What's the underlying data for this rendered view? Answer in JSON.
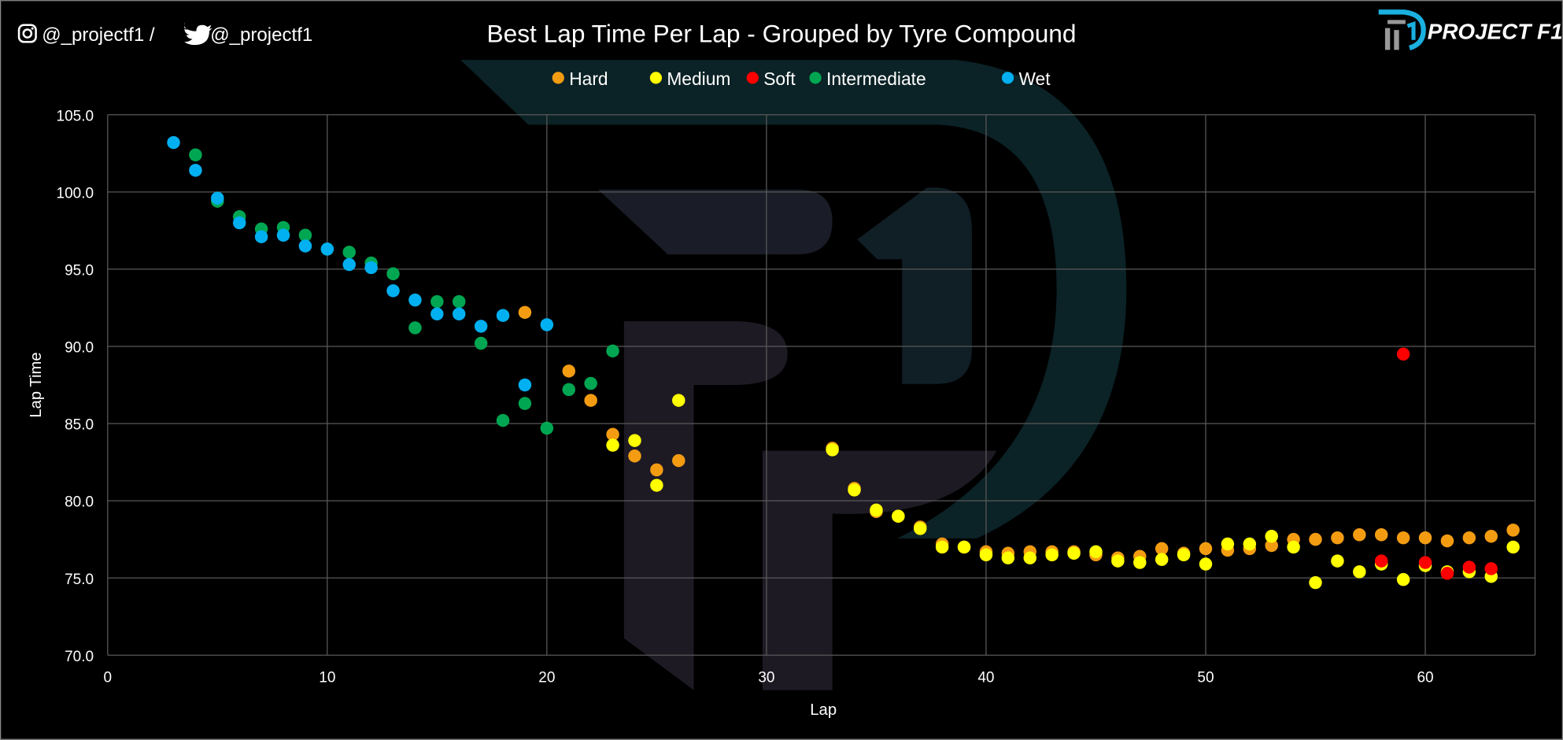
{
  "header": {
    "instagram_handle": "@_projectf1 /",
    "twitter_handle": "@_projectf1",
    "logo_text": "PROJECT F1"
  },
  "chart_data": {
    "type": "scatter",
    "title": "Best Lap Time Per Lap - Grouped by Tyre Compound",
    "xlabel": "Lap",
    "ylabel": "Lap Time",
    "xlim": [
      0,
      65
    ],
    "ylim": [
      70,
      105
    ],
    "xticks": [
      0,
      10,
      20,
      30,
      40,
      50,
      60
    ],
    "yticks": [
      "70.0",
      "75.0",
      "80.0",
      "85.0",
      "90.0",
      "95.0",
      "100.0",
      "105.0"
    ],
    "grid": true,
    "legend_placement": "top-center",
    "series": [
      {
        "name": "Hard",
        "color": "#f39c12",
        "x": [
          19,
          21,
          22,
          23,
          24,
          25,
          26,
          33,
          34,
          35,
          36,
          37,
          38,
          39,
          40,
          41,
          42,
          43,
          44,
          45,
          46,
          47,
          48,
          49,
          50,
          51,
          52,
          53,
          54,
          55,
          56,
          57,
          58,
          59,
          60,
          61,
          62,
          63,
          64
        ],
        "y": [
          92.2,
          88.4,
          86.5,
          84.3,
          82.9,
          82.0,
          82.6,
          83.4,
          80.8,
          79.3,
          79.0,
          78.3,
          77.2,
          77.0,
          76.7,
          76.6,
          76.7,
          76.7,
          76.7,
          76.5,
          76.3,
          76.4,
          76.9,
          76.6,
          76.9,
          76.8,
          76.9,
          77.1,
          77.5,
          77.5,
          77.6,
          77.8,
          77.8,
          77.6,
          77.6,
          77.4,
          77.6,
          77.7,
          78.1
        ]
      },
      {
        "name": "Medium",
        "color": "#ffff00",
        "x": [
          23,
          24,
          25,
          26,
          33,
          34,
          35,
          36,
          37,
          38,
          39,
          40,
          41,
          42,
          43,
          44,
          45,
          46,
          47,
          48,
          49,
          50,
          51,
          52,
          53,
          54,
          55,
          56,
          57,
          58,
          59,
          60,
          61,
          62,
          63,
          64
        ],
        "y": [
          83.6,
          83.9,
          81.0,
          86.5,
          83.3,
          80.7,
          79.4,
          79.0,
          78.2,
          77.0,
          77.0,
          76.5,
          76.3,
          76.3,
          76.5,
          76.6,
          76.7,
          76.1,
          76.0,
          76.2,
          76.5,
          75.9,
          77.2,
          77.2,
          77.7,
          77.0,
          74.7,
          76.1,
          75.4,
          75.9,
          74.9,
          75.8,
          75.4,
          75.4,
          75.1,
          77.0
        ]
      },
      {
        "name": "Soft",
        "color": "#ff0000",
        "x": [
          58,
          59,
          60,
          61,
          62,
          63
        ],
        "y": [
          76.1,
          89.5,
          76.0,
          75.3,
          75.7,
          75.6
        ]
      },
      {
        "name": "Intermediate",
        "color": "#00a651",
        "x": [
          4,
          5,
          6,
          7,
          8,
          9,
          10,
          11,
          12,
          13,
          14,
          15,
          16,
          17,
          18,
          19,
          20,
          21,
          22,
          23
        ],
        "y": [
          102.4,
          99.4,
          98.4,
          97.6,
          97.7,
          97.2,
          96.3,
          96.1,
          95.4,
          94.7,
          91.2,
          92.9,
          92.9,
          90.2,
          85.2,
          86.3,
          84.7,
          87.2,
          87.6,
          89.7
        ]
      },
      {
        "name": "Wet",
        "color": "#00b0f0",
        "x": [
          3,
          4,
          5,
          6,
          7,
          8,
          9,
          10,
          11,
          12,
          13,
          14,
          15,
          16,
          17,
          18,
          19,
          20
        ],
        "y": [
          103.2,
          101.4,
          99.6,
          98.0,
          97.1,
          97.2,
          96.5,
          96.3,
          95.3,
          95.1,
          93.6,
          93.0,
          92.1,
          92.1,
          91.3,
          92.0,
          87.5,
          91.4
        ]
      }
    ]
  }
}
